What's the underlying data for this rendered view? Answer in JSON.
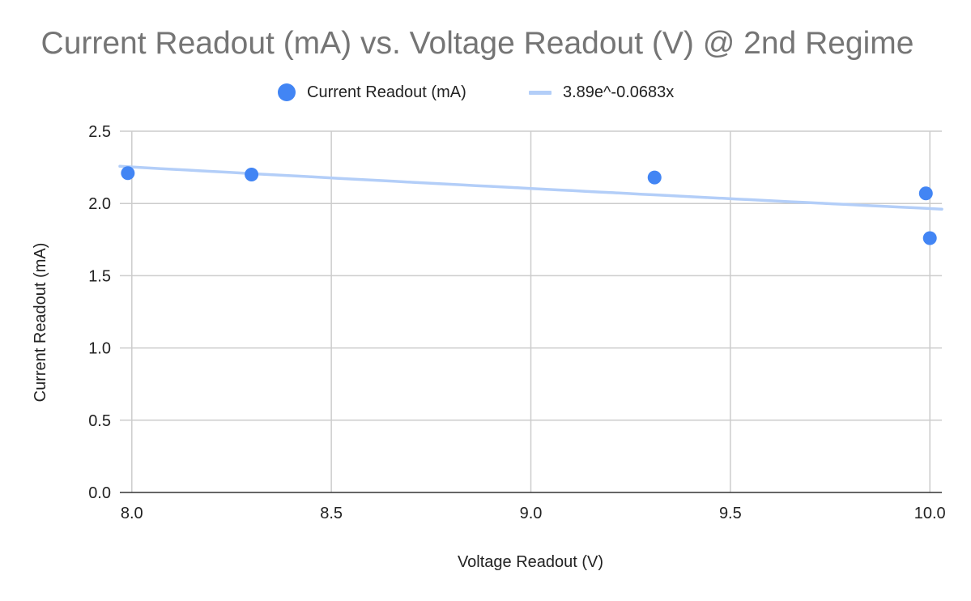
{
  "chart_data": {
    "type": "scatter",
    "title": "Current Readout (mA) vs. Voltage Readout (V) @ 2nd Regime",
    "xlabel": "Voltage Readout (V)",
    "ylabel": "Current Readout (mA)",
    "xlim": [
      7.97,
      10.03
    ],
    "ylim": [
      0,
      2.5
    ],
    "x_ticks": [
      "8.0",
      "8.5",
      "9.0",
      "9.5",
      "10.0"
    ],
    "y_ticks": [
      "0.0",
      "0.5",
      "1.0",
      "1.5",
      "2.0",
      "2.5"
    ],
    "grid": true,
    "legend_position": "top",
    "series": [
      {
        "name": "Current Readout (mA)",
        "color": "#4285F4",
        "points": [
          {
            "x": 7.99,
            "y": 2.21
          },
          {
            "x": 8.3,
            "y": 2.2
          },
          {
            "x": 9.31,
            "y": 2.18
          },
          {
            "x": 9.99,
            "y": 2.07
          },
          {
            "x": 10.0,
            "y": 1.76
          }
        ]
      }
    ],
    "trendline": {
      "label": "3.89e^-0.0683x",
      "color": "#B3CEF8",
      "a": 3.89,
      "b": -0.0683
    }
  }
}
